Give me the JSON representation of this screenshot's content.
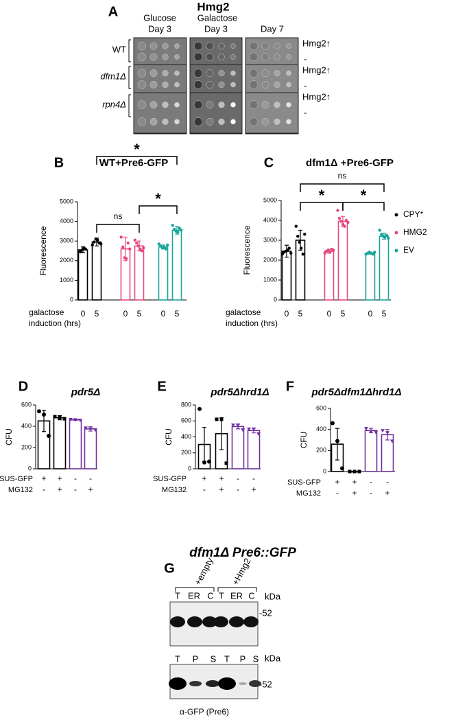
{
  "panel_labels": [
    "A",
    "B",
    "C",
    "D",
    "E",
    "F",
    "G"
  ],
  "panel_a": {
    "title": "Hmg2",
    "headers": [
      "Glucose",
      "Day 3",
      "Galactose",
      "Day 3",
      "Day 7"
    ],
    "strains": [
      "WT",
      "dfm1Δ",
      "rpn4Δ"
    ],
    "row_labels": [
      "Hmg2↑",
      "-"
    ]
  },
  "chart_data": [
    {
      "type": "bar",
      "title": "WT+Pre6-GFP",
      "ylabel": "Fluorescence",
      "xlabel": "galactose induction (hrs)",
      "categories": [
        "0",
        "5",
        "0",
        "5",
        "0",
        "5"
      ],
      "ylim": [
        0,
        5000
      ],
      "yticks": [
        0,
        1000,
        2000,
        3000,
        4000,
        5000
      ],
      "series": [
        {
          "color": "#000000",
          "values": [
            2550,
            2950,
            null,
            null,
            null,
            null
          ],
          "errors": [
            150,
            200,
            null,
            null,
            null,
            null
          ],
          "points": [
            [
              2450,
              2550,
              2650,
              2600
            ],
            [
              2800,
              2950,
              3100,
              3050,
              2900,
              2850
            ],
            null,
            null,
            null,
            null
          ]
        },
        {
          "color": "#e8467c",
          "values": [
            null,
            null,
            2600,
            2750,
            null,
            null
          ],
          "errors": [
            null,
            null,
            600,
            250,
            null,
            null
          ],
          "points": [
            null,
            null,
            [
              3200,
              2700,
              2150,
              2100,
              2900,
              2600
            ],
            [
              3050,
              2900,
              2750,
              2600,
              2500,
              2650
            ],
            null,
            null
          ]
        },
        {
          "color": "#1aa59a",
          "values": [
            null,
            null,
            null,
            null,
            2700,
            3550
          ],
          "errors": [
            null,
            null,
            null,
            null,
            100,
            200
          ],
          "points": [
            null,
            null,
            null,
            null,
            [
              2850,
              2750,
              2650,
              2700,
              2600,
              2800
            ],
            [
              3800,
              3600,
              3500,
              3450,
              3650,
              3550
            ]
          ]
        }
      ],
      "annotations": [
        "*",
        "*",
        "ns"
      ]
    },
    {
      "type": "bar",
      "title": "dfm1Δ +Pre6-GFP",
      "ylabel": "Fluorescence",
      "xlabel": "galactose induction (hrs)",
      "categories": [
        "0",
        "5",
        "0",
        "5",
        "0",
        "5"
      ],
      "ylim": [
        0,
        5000
      ],
      "yticks": [
        0,
        1000,
        2000,
        3000,
        4000,
        5000
      ],
      "series": [
        {
          "name": "CPY*",
          "color": "#000000",
          "values": [
            2450,
            3000,
            null,
            null,
            null,
            null
          ],
          "errors": [
            300,
            500,
            null,
            null,
            null,
            null
          ],
          "points": [
            [
              2300,
              2400,
              2450,
              2500,
              2600,
              2350
            ],
            [
              3700,
              3200,
              2900,
              2600,
              2300,
              3300
            ],
            null,
            null,
            null,
            null
          ]
        },
        {
          "name": "HMG2",
          "color": "#e8467c",
          "values": [
            null,
            null,
            2450,
            3950,
            null,
            null
          ],
          "errors": [
            null,
            null,
            100,
            250,
            null,
            null
          ],
          "points": [
            null,
            null,
            [
              2350,
              2450,
              2500,
              2400,
              2550,
              2500
            ],
            [
              4500,
              4100,
              3950,
              3800,
              3700,
              4000,
              3900
            ],
            null,
            null
          ]
        },
        {
          "name": "EV",
          "color": "#1aa59a",
          "values": [
            null,
            null,
            null,
            null,
            2350,
            3200
          ],
          "errors": [
            null,
            null,
            null,
            null,
            50,
            150
          ],
          "points": [
            null,
            null,
            null,
            null,
            [
              2300,
              2350,
              2400,
              2350,
              2300,
              2400
            ],
            [
              3500,
              3300,
              3200,
              3150,
              3250,
              3100
            ]
          ]
        }
      ],
      "annotations": [
        "ns",
        "*",
        "*"
      ]
    },
    {
      "type": "bar",
      "title": "pdr5Δ",
      "ylabel": "CFU",
      "ylim": [
        0,
        600
      ],
      "yticks": [
        0,
        200,
        400,
        600
      ],
      "rows": [
        {
          "label": "SUS-GFP",
          "signs": [
            "+",
            "+",
            "-",
            "-"
          ]
        },
        {
          "label": "MG132",
          "signs": [
            "-",
            "+",
            "-",
            "+"
          ]
        }
      ],
      "series": [
        {
          "color": "#000000",
          "values": [
            450,
            480,
            null,
            null
          ],
          "errors": [
            100,
            20,
            null,
            null
          ],
          "points": [
            [
              540,
              510,
              310
            ],
            [
              490,
              480,
              470
            ],
            null,
            null
          ]
        },
        {
          "color": "#7030a0",
          "values": [
            null,
            null,
            460,
            375
          ],
          "errors": [
            null,
            null,
            5,
            20
          ],
          "points": [
            null,
            null,
            [
              465,
              462,
              458
            ],
            [
              385,
              375,
              365
            ]
          ]
        }
      ]
    },
    {
      "type": "bar",
      "title": "pdr5Δhrd1Δ",
      "ylabel": "CFU",
      "ylim": [
        0,
        800
      ],
      "yticks": [
        0,
        200,
        400,
        600,
        800
      ],
      "rows": [
        {
          "label": "SUS-GFP",
          "signs": [
            "+",
            "+",
            "-",
            "-"
          ]
        },
        {
          "label": "MG132",
          "signs": [
            "-",
            "+",
            "-",
            "+"
          ]
        }
      ],
      "series": [
        {
          "color": "#000000",
          "values": [
            305,
            440,
            null,
            null
          ],
          "errors": [
            215,
            200,
            null,
            null
          ],
          "points": [
            [
              750,
              80,
              90
            ],
            [
              620,
              620,
              70
            ],
            null,
            null
          ]
        },
        {
          "color": "#7030a0",
          "values": [
            null,
            null,
            530,
            480
          ],
          "errors": [
            null,
            null,
            30,
            30
          ],
          "points": [
            null,
            null,
            [
              550,
              550,
              490
            ],
            [
              500,
              500,
              440
            ]
          ]
        }
      ]
    },
    {
      "type": "bar",
      "title": "pdr5Δdfm1Δhrd1Δ",
      "ylabel": "CFU",
      "ylim": [
        0,
        600
      ],
      "yticks": [
        0,
        200,
        400,
        600
      ],
      "rows": [
        {
          "label": "SUS-GFP",
          "signs": [
            "+",
            "+",
            "-",
            "-"
          ]
        },
        {
          "label": "MG132",
          "signs": [
            "-",
            "+",
            "-",
            "+"
          ]
        }
      ],
      "series": [
        {
          "color": "#000000",
          "values": [
            260,
            0,
            null,
            null
          ],
          "errors": [
            150,
            0,
            null,
            null
          ],
          "points": [
            [
              460,
              290,
              30
            ],
            [
              0,
              0,
              0
            ],
            null,
            null
          ]
        },
        {
          "color": "#7030a0",
          "values": [
            null,
            null,
            390,
            350
          ],
          "errors": [
            null,
            null,
            20,
            50
          ],
          "points": [
            null,
            null,
            [
              410,
              380,
              375
            ],
            [
              390,
              370,
              290
            ]
          ]
        }
      ]
    }
  ],
  "panel_g": {
    "title": "dfm1Δ Pre6::GFP",
    "conditions": [
      "+empty",
      "+Hmg2"
    ],
    "lanes_top": [
      "T",
      "ER",
      "C",
      "T",
      "ER",
      "C"
    ],
    "lanes_bottom": [
      "T",
      "P",
      "S",
      "T",
      "P",
      "S"
    ],
    "kda": "kDa",
    "marker": "-52",
    "caption": "α-GFP (Pre6)"
  }
}
